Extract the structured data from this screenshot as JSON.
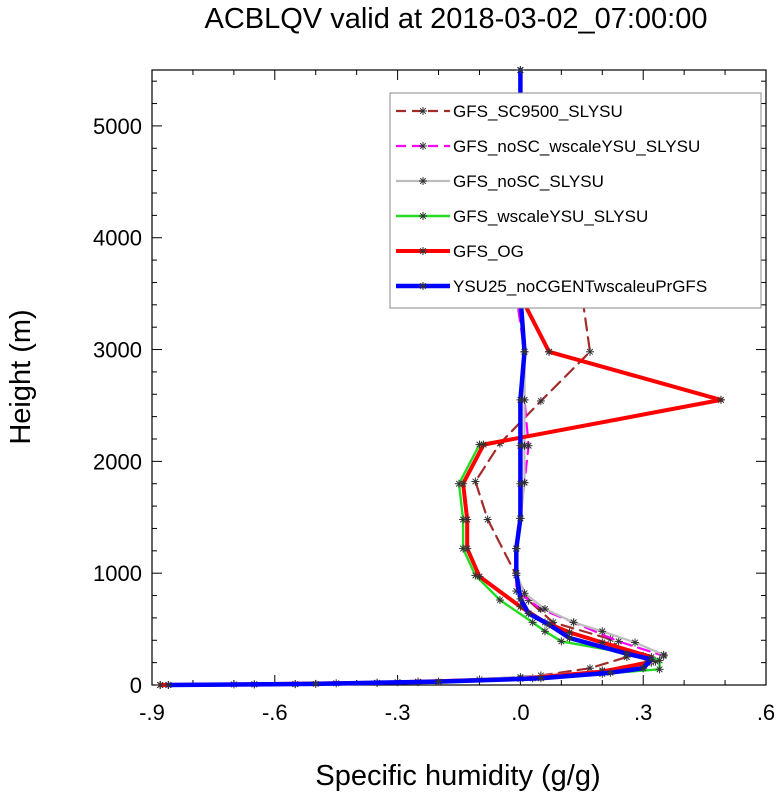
{
  "chart_data": {
    "type": "line",
    "title": "ACBLQV valid at 2018-03-02_07:00:00",
    "xlabel": "Specific humidity (g/g)",
    "ylabel": "Height (m)",
    "xlim": [
      -0.9,
      0.6
    ],
    "ylim": [
      0,
      5500
    ],
    "xticks": [
      -0.9,
      -0.6,
      -0.3,
      0.0,
      0.3,
      0.6
    ],
    "xtick_labels": [
      "-.9",
      "-.6",
      "-.3",
      ".0",
      ".3",
      ".6"
    ],
    "yticks": [
      0,
      1000,
      2000,
      3000,
      4000,
      5000
    ],
    "ytick_labels": [
      "0",
      "1000",
      "2000",
      "3000",
      "4000",
      "5000"
    ],
    "grid": false,
    "legend_position": "top-right",
    "series": [
      {
        "name": "GFS_SC9500_SLYSU",
        "color": "#a52a2a",
        "dash": "dashed",
        "marker": "asterisk",
        "points": [
          [
            -0.88,
            0
          ],
          [
            -0.7,
            5
          ],
          [
            -0.45,
            15
          ],
          [
            -0.25,
            30
          ],
          [
            -0.1,
            50
          ],
          [
            0.05,
            85
          ],
          [
            0.17,
            150
          ],
          [
            0.26,
            250
          ],
          [
            0.22,
            410
          ],
          [
            0.08,
            560
          ],
          [
            0.02,
            755
          ],
          [
            -0.01,
            980
          ],
          [
            -0.08,
            1480
          ],
          [
            -0.11,
            1820
          ],
          [
            -0.05,
            2160
          ],
          [
            0.05,
            2540
          ],
          [
            0.17,
            2980
          ],
          [
            0.15,
            3500
          ],
          [
            0.05,
            4050
          ],
          [
            0.0,
            4630
          ],
          [
            0.0,
            5200
          ],
          [
            0.0,
            5500
          ]
        ]
      },
      {
        "name": "GFS_noSC_wscaleYSU_SLYSU",
        "color": "#ff00ff",
        "dash": "dashed",
        "marker": "asterisk",
        "points": [
          [
            -0.86,
            0
          ],
          [
            -0.55,
            8
          ],
          [
            -0.25,
            25
          ],
          [
            0.03,
            60
          ],
          [
            0.2,
            130
          ],
          [
            0.32,
            200
          ],
          [
            0.35,
            260
          ],
          [
            0.24,
            390
          ],
          [
            0.13,
            560
          ],
          [
            0.05,
            680
          ],
          [
            -0.01,
            840
          ],
          [
            -0.01,
            1220
          ],
          [
            0.0,
            1490
          ],
          [
            0.01,
            1810
          ],
          [
            0.02,
            2140
          ],
          [
            0.01,
            2550
          ],
          [
            0.01,
            2980
          ],
          [
            -0.01,
            3480
          ],
          [
            -0.01,
            4060
          ],
          [
            0.0,
            4630
          ],
          [
            0.0,
            5200
          ],
          [
            0.0,
            5500
          ]
        ]
      },
      {
        "name": "GFS_noSC_SLYSU",
        "color": "#bdbdbd",
        "dash": "solid",
        "marker": "asterisk",
        "points": [
          [
            -0.88,
            0
          ],
          [
            -0.65,
            6
          ],
          [
            -0.35,
            20
          ],
          [
            0.0,
            70
          ],
          [
            0.25,
            140
          ],
          [
            0.33,
            210
          ],
          [
            0.35,
            270
          ],
          [
            0.28,
            380
          ],
          [
            0.2,
            480
          ],
          [
            0.13,
            560
          ],
          [
            0.06,
            680
          ],
          [
            0.01,
            820
          ],
          [
            -0.01,
            1000
          ],
          [
            -0.01,
            1220
          ],
          [
            0.0,
            1490
          ],
          [
            0.01,
            1810
          ],
          [
            0.01,
            2140
          ],
          [
            0.01,
            2550
          ],
          [
            0.01,
            2980
          ],
          [
            0.0,
            3480
          ],
          [
            0.0,
            4060
          ],
          [
            0.0,
            4630
          ],
          [
            0.0,
            5200
          ],
          [
            0.0,
            5500
          ]
        ]
      },
      {
        "name": "GFS_wscaleYSU_SLYSU",
        "color": "#22dd22",
        "dash": "solid",
        "marker": "asterisk",
        "points": [
          [
            -0.86,
            0
          ],
          [
            -0.55,
            8
          ],
          [
            -0.3,
            25
          ],
          [
            0.0,
            55
          ],
          [
            0.2,
            100
          ],
          [
            0.34,
            140
          ],
          [
            0.34,
            220
          ],
          [
            0.3,
            260
          ],
          [
            0.1,
            390
          ],
          [
            0.06,
            480
          ],
          [
            0.03,
            560
          ],
          [
            -0.05,
            760
          ],
          [
            -0.11,
            980
          ],
          [
            -0.14,
            1220
          ],
          [
            -0.14,
            1480
          ],
          [
            -0.15,
            1800
          ],
          [
            -0.1,
            2150
          ],
          [
            0.49,
            2550
          ],
          [
            0.07,
            2980
          ],
          [
            0.0,
            3480
          ]
        ]
      },
      {
        "name": "GFS_OG",
        "color": "#ff0000",
        "dash": "solid",
        "marker": "asterisk",
        "points": [
          [
            -0.88,
            0
          ],
          [
            -0.65,
            6
          ],
          [
            -0.35,
            20
          ],
          [
            0.0,
            55
          ],
          [
            0.2,
            120
          ],
          [
            0.31,
            200
          ],
          [
            0.32,
            250
          ],
          [
            0.2,
            380
          ],
          [
            0.12,
            470
          ],
          [
            0.06,
            560
          ],
          [
            0.0,
            700
          ],
          [
            -0.1,
            970
          ],
          [
            -0.13,
            1220
          ],
          [
            -0.13,
            1480
          ],
          [
            -0.14,
            1800
          ],
          [
            -0.09,
            2150
          ],
          [
            0.49,
            2550
          ],
          [
            0.07,
            2980
          ],
          [
            0.0,
            3480
          ]
        ]
      },
      {
        "name": "YSU25_noCGENTwscaleuPrGFS",
        "color": "#0000ff",
        "dash": "solid",
        "marker": "asterisk",
        "points": [
          [
            -0.86,
            0
          ],
          [
            -0.5,
            10
          ],
          [
            -0.2,
            30
          ],
          [
            0.05,
            60
          ],
          [
            0.22,
            110
          ],
          [
            0.3,
            150
          ],
          [
            0.32,
            230
          ],
          [
            0.26,
            280
          ],
          [
            0.12,
            420
          ],
          [
            0.07,
            540
          ],
          [
            0.02,
            640
          ],
          [
            0.0,
            770
          ],
          [
            -0.01,
            1000
          ],
          [
            -0.01,
            1220
          ],
          [
            0.0,
            1490
          ],
          [
            0.0,
            1800
          ],
          [
            0.0,
            2140
          ],
          [
            0.0,
            2550
          ],
          [
            0.01,
            2980
          ],
          [
            0.0,
            3480
          ],
          [
            0.0,
            4060
          ],
          [
            0.0,
            4630
          ],
          [
            0.0,
            5200
          ],
          [
            0.0,
            5500
          ]
        ]
      }
    ]
  }
}
